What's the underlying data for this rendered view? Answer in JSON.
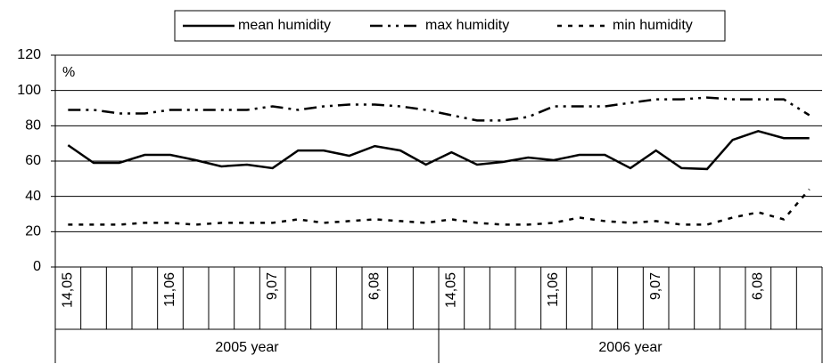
{
  "chart_data": {
    "type": "line",
    "unit_label": "%",
    "groups": [
      {
        "label": "2005 year",
        "categories": [
          "14,05",
          null,
          null,
          null,
          "11,06",
          null,
          null,
          null,
          "9,07",
          null,
          null,
          null,
          "6,08",
          null,
          null
        ]
      },
      {
        "label": "2006 year",
        "categories": [
          "14,05",
          null,
          null,
          null,
          "11,06",
          null,
          null,
          null,
          "9,07",
          null,
          null,
          null,
          "6,08",
          null,
          null
        ]
      }
    ],
    "series": [
      {
        "name": "mean humidity",
        "color": "#000000",
        "dash": "solid",
        "values": [
          69,
          59,
          59,
          63.5,
          63.5,
          60.5,
          57,
          58,
          56,
          66,
          66,
          63,
          68.5,
          66,
          58,
          65,
          58,
          59.5,
          62,
          60.5,
          63.5,
          63.5,
          56,
          66,
          56,
          55.5,
          72,
          77,
          73,
          73
        ]
      },
      {
        "name": "max humidity",
        "color": "#000000",
        "dash": "dashdot",
        "values": [
          89,
          89,
          87,
          87,
          89,
          89,
          89,
          89,
          91,
          89,
          91,
          92,
          92,
          91,
          89,
          86,
          83,
          83,
          85,
          91,
          91,
          91,
          93,
          95,
          95,
          96,
          95,
          95,
          95,
          86
        ]
      },
      {
        "name": "min humidity",
        "color": "#000000",
        "dash": "dot",
        "values": [
          24,
          24,
          24,
          25,
          25,
          24,
          25,
          25,
          25,
          27,
          25,
          26,
          27,
          26,
          25,
          27,
          25,
          24,
          24,
          25,
          28,
          26,
          25,
          26,
          24,
          24,
          28,
          31,
          27,
          44
        ]
      }
    ],
    "ylim": [
      0,
      120
    ],
    "yticks": [
      0,
      20,
      40,
      60,
      80,
      100,
      120
    ],
    "grid": true,
    "legend": "top"
  }
}
